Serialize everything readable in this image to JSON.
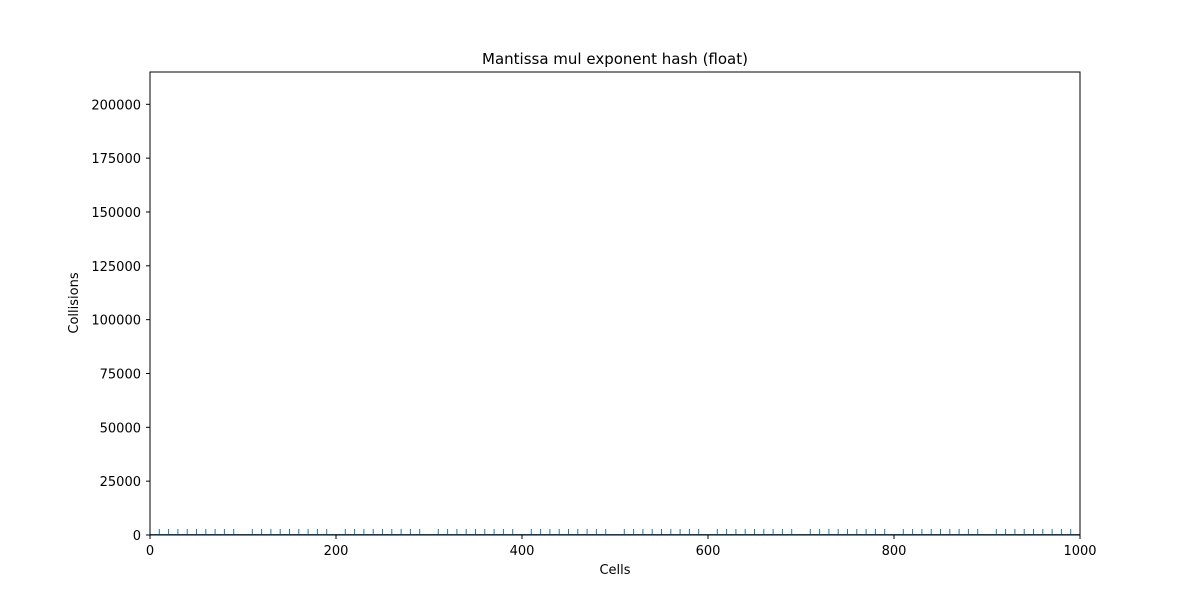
{
  "chart_data": {
    "type": "bar",
    "title": "Mantissa mul exponent hash (float)",
    "xlabel": "Cells",
    "ylabel": "Collisions",
    "xlim": [
      0,
      1000
    ],
    "ylim": [
      0,
      215000
    ],
    "xticks": [
      0,
      200,
      400,
      600,
      800,
      1000
    ],
    "yticks": [
      0,
      25000,
      50000,
      75000,
      100000,
      125000,
      150000,
      175000,
      200000
    ],
    "grid": false,
    "legend": "none",
    "color": "#1f77b4",
    "bar_height": 2800,
    "pattern": "spikes at every 10th cell except multiples of 100, all other cells near 0"
  }
}
